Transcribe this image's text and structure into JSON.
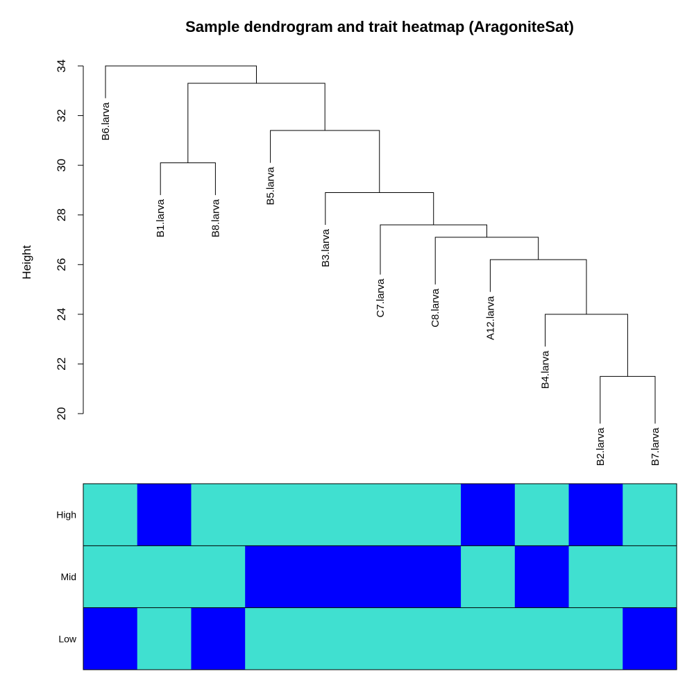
{
  "chart_data": {
    "type": "heatmap",
    "title": "Sample dendrogram and trait heatmap (AragoniteSat)",
    "ylabel": "Height",
    "ylim": [
      20,
      34
    ],
    "yticks": [
      20,
      22,
      24,
      26,
      28,
      30,
      32,
      34
    ],
    "colors": {
      "cyan": "#40E0D0",
      "blue": "#0000FF",
      "line": "#000000"
    },
    "dendrogram": {
      "leaves": [
        {
          "label": "B6.larva",
          "height": 32.7
        },
        {
          "label": "B1.larva",
          "height": 28.8
        },
        {
          "label": "B8.larva",
          "height": 28.8
        },
        {
          "label": "B5.larva",
          "height": 30.1
        },
        {
          "label": "B3.larva",
          "height": 27.6
        },
        {
          "label": "C7.larva",
          "height": 25.6
        },
        {
          "label": "C8.larva",
          "height": 25.2
        },
        {
          "label": "A12.larva",
          "height": 24.9
        },
        {
          "label": "B4.larva",
          "height": 22.7
        },
        {
          "label": "B2.larva",
          "height": 19.6
        },
        {
          "label": "B7.larva",
          "height": 19.6
        }
      ],
      "merges": [
        {
          "left": "leaf:9",
          "right": "leaf:10",
          "height": 21.5
        },
        {
          "left": "leaf:8",
          "right": "node:0",
          "height": 24.0
        },
        {
          "left": "leaf:7",
          "right": "node:1",
          "height": 26.2
        },
        {
          "left": "leaf:6",
          "right": "node:2",
          "height": 27.1
        },
        {
          "left": "leaf:5",
          "right": "node:3",
          "height": 27.6
        },
        {
          "left": "leaf:4",
          "right": "node:4",
          "height": 28.9
        },
        {
          "left": "leaf:3",
          "right": "node:5",
          "height": 31.4
        },
        {
          "left": "leaf:1",
          "right": "leaf:2",
          "height": 30.1
        },
        {
          "left": "node:7",
          "right": "node:6",
          "height": 33.3
        },
        {
          "left": "leaf:0",
          "right": "node:8",
          "height": 34.0
        }
      ]
    },
    "heatmap": {
      "rows": [
        {
          "label": "High",
          "values": [
            "cyan",
            "blue",
            "cyan",
            "cyan",
            "cyan",
            "cyan",
            "cyan",
            "blue",
            "cyan",
            "blue",
            "cyan"
          ]
        },
        {
          "label": "Mid",
          "values": [
            "cyan",
            "cyan",
            "cyan",
            "blue",
            "blue",
            "blue",
            "blue",
            "cyan",
            "blue",
            "cyan",
            "cyan"
          ]
        },
        {
          "label": "Low",
          "values": [
            "blue",
            "cyan",
            "blue",
            "cyan",
            "cyan",
            "cyan",
            "cyan",
            "cyan",
            "cyan",
            "cyan",
            "blue"
          ]
        }
      ]
    }
  }
}
